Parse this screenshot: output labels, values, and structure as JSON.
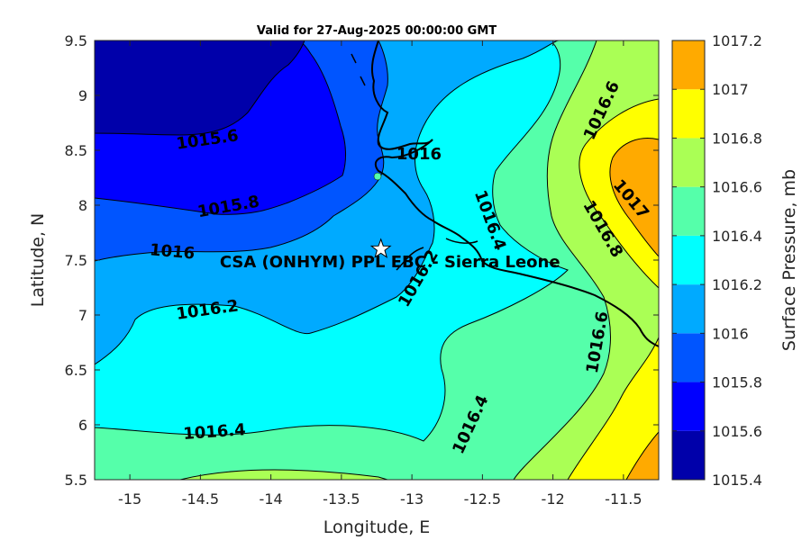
{
  "chart_data": {
    "type": "heatmap",
    "subtype": "filled-contour-map",
    "title": "Valid for 27-Aug-2025 00:00:00 GMT",
    "xlabel": "Longitude, E",
    "ylabel": "Latitude, N",
    "xlim": [
      -15.25,
      -11.25
    ],
    "ylim": [
      5.5,
      9.5
    ],
    "xticks": [
      -15,
      -14.5,
      -14,
      -13.5,
      -13,
      -12.5,
      -12,
      -11.5
    ],
    "xtick_labels": [
      "-15",
      "-14.5",
      "-14",
      "-13.5",
      "-13",
      "-12.5",
      "-12",
      "-11.5"
    ],
    "yticks": [
      5.5,
      6,
      6.5,
      7,
      7.5,
      8,
      8.5,
      9,
      9.5
    ],
    "ytick_labels": [
      "5.5",
      "6",
      "6.5",
      "7",
      "7.5",
      "8",
      "8.5",
      "9",
      "9.5"
    ],
    "colorbar": {
      "label": "Surface Pressure, mb",
      "levels": [
        1015.4,
        1015.6,
        1015.8,
        1016,
        1016.2,
        1016.4,
        1016.6,
        1016.8,
        1017,
        1017.2
      ],
      "level_labels": [
        "1015.4",
        "1015.6",
        "1015.8",
        "1016",
        "1016.2",
        "1016.4",
        "1016.6",
        "1016.8",
        "1017",
        "1017.2"
      ],
      "colors": [
        "#0000aa",
        "#0000ff",
        "#0055ff",
        "#00aaff",
        "#00ffff",
        "#55ffaa",
        "#aaff55",
        "#ffff00",
        "#ffaa00",
        "#ff5500"
      ]
    },
    "contour_labels": [
      {
        "text": "1015.6",
        "lon": -14.45,
        "lat": 8.59,
        "angle": -8
      },
      {
        "text": "1015.8",
        "lon": -14.3,
        "lat": 7.98,
        "angle": -10
      },
      {
        "text": "1016",
        "lon": -14.7,
        "lat": 7.57,
        "angle": 5
      },
      {
        "text": "1016.2",
        "lon": -14.45,
        "lat": 7.04,
        "angle": -8
      },
      {
        "text": "1016.4",
        "lon": -14.4,
        "lat": 5.93,
        "angle": -4
      },
      {
        "text": "1016",
        "lon": -12.95,
        "lat": 8.46,
        "angle": 0
      },
      {
        "text": "1016.2",
        "lon": -12.95,
        "lat": 7.33,
        "angle": -60
      },
      {
        "text": "1016.4",
        "lon": -12.45,
        "lat": 7.86,
        "angle": 70
      },
      {
        "text": "1016.4",
        "lon": -12.58,
        "lat": 6.0,
        "angle": -65
      },
      {
        "text": "1016.6",
        "lon": -11.65,
        "lat": 8.86,
        "angle": -65
      },
      {
        "text": "1016.6",
        "lon": -11.68,
        "lat": 6.75,
        "angle": -80
      },
      {
        "text": "1016.8",
        "lon": -11.65,
        "lat": 7.78,
        "angle": 60
      },
      {
        "text": "1017",
        "lon": -11.45,
        "lat": 8.05,
        "angle": 50
      }
    ],
    "site": {
      "name": "CSA (ONHYM) PPL EBC - Sierra Leone",
      "lon": -13.22,
      "lat": 7.6
    }
  }
}
